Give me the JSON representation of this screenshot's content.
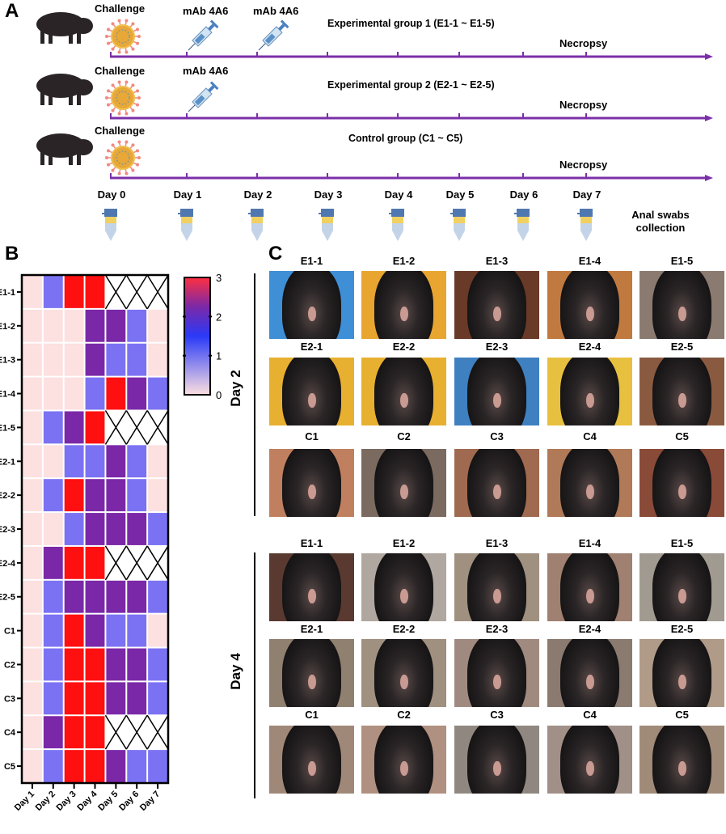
{
  "panel_a": {
    "label": "A",
    "groups": [
      {
        "challenge": "Challenge",
        "mab": [
          "mAb 4A6",
          "mAb 4A6"
        ],
        "title": "Experimental group 1 (E1-1 ~ E1-5)",
        "necropsy": "Necropsy"
      },
      {
        "challenge": "Challenge",
        "mab": [
          "mAb 4A6"
        ],
        "title": "Experimental group 2 (E2-1 ~ E2-5)",
        "necropsy": "Necropsy"
      },
      {
        "challenge": "Challenge",
        "mab": [],
        "title": "Control group (C1 ~ C5)",
        "necropsy": "Necropsy"
      }
    ],
    "days": [
      "Day 0",
      "Day 1",
      "Day 2",
      "Day 3",
      "Day 4",
      "Day 5",
      "Day 6",
      "Day 7"
    ],
    "swab_label_1": "Anal swabs",
    "swab_label_2": "collection",
    "timeline_color": "#7b2fa8",
    "icons": [
      "pig-icon",
      "virus-icon",
      "syringe-icon",
      "swab-tube-icon"
    ]
  },
  "panel_b": {
    "label": "B"
  },
  "chart_data": {
    "type": "heatmap",
    "rows": [
      "E1-1",
      "E1-2",
      "E1-3",
      "E1-4",
      "E1-5",
      "E2-1",
      "E2-2",
      "E2-3",
      "E2-4",
      "E2-5",
      "C1",
      "C2",
      "C3",
      "C4",
      "C5"
    ],
    "columns": [
      "Day 1",
      "Day 2",
      "Day 3",
      "Day 4",
      "Day 5",
      "Day 6",
      "Day 7"
    ],
    "values": [
      [
        0,
        1,
        3,
        3,
        null,
        null,
        null
      ],
      [
        0,
        0,
        0,
        2,
        2,
        1,
        0
      ],
      [
        0,
        0,
        0,
        2,
        1,
        1,
        0
      ],
      [
        0,
        0,
        0,
        1,
        3,
        2,
        1
      ],
      [
        0,
        1,
        2,
        3,
        null,
        null,
        null
      ],
      [
        0,
        0,
        1,
        1,
        2,
        1,
        0
      ],
      [
        0,
        1,
        3,
        2,
        2,
        1,
        0
      ],
      [
        0,
        0,
        1,
        2,
        2,
        2,
        1
      ],
      [
        0,
        2,
        3,
        3,
        null,
        null,
        null
      ],
      [
        0,
        1,
        2,
        2,
        2,
        2,
        1
      ],
      [
        0,
        1,
        3,
        2,
        1,
        1,
        0
      ],
      [
        0,
        1,
        3,
        3,
        2,
        2,
        1
      ],
      [
        0,
        1,
        3,
        3,
        2,
        2,
        1
      ],
      [
        0,
        2,
        3,
        3,
        null,
        null,
        null
      ],
      [
        0,
        1,
        3,
        3,
        2,
        1,
        1
      ]
    ],
    "missing_marker": "X (crossed cell)",
    "colorbar": {
      "ticks": [
        "3",
        "2",
        "1",
        "0"
      ],
      "range": [
        0,
        3
      ]
    },
    "color_scale": {
      "0": "#fde0e0",
      "1": "#7b72f3",
      "2": "#7b28a8",
      "3": "#ff1010"
    }
  },
  "panel_c": {
    "label": "C",
    "sections": [
      {
        "day": "Day 2",
        "rows": [
          [
            "E1-1",
            "E1-2",
            "E1-3",
            "E1-4",
            "E1-5"
          ],
          [
            "E2-1",
            "E2-2",
            "E2-3",
            "E2-4",
            "E2-5"
          ],
          [
            "C1",
            "C2",
            "C3",
            "C4",
            "C5"
          ]
        ],
        "backgrounds": [
          [
            "#3f8fd6",
            "#e8a530",
            "#6a3a28",
            "#c07a40",
            "#8a7a70"
          ],
          [
            "#e8b030",
            "#e8b030",
            "#3f80c0",
            "#e8c040",
            "#8a5a40"
          ],
          [
            "#c08060",
            "#7a6a60",
            "#a06a50",
            "#b07a58",
            "#8a4a38"
          ]
        ]
      },
      {
        "day": "Day 4",
        "rows": [
          [
            "E1-1",
            "E1-2",
            "E1-3",
            "E1-4",
            "E1-5"
          ],
          [
            "E2-1",
            "E2-2",
            "E2-3",
            "E2-4",
            "E2-5"
          ],
          [
            "C1",
            "C2",
            "C3",
            "C4",
            "C5"
          ]
        ],
        "backgrounds": [
          [
            "#5a3a30",
            "#b0a8a0",
            "#a09080",
            "#a08070",
            "#a09a90"
          ],
          [
            "#908070",
            "#a09080",
            "#a08a80",
            "#8a7a70",
            "#b09a88"
          ],
          [
            "#a08878",
            "#b09080",
            "#908880",
            "#a09088",
            "#a08a78"
          ]
        ]
      }
    ]
  }
}
